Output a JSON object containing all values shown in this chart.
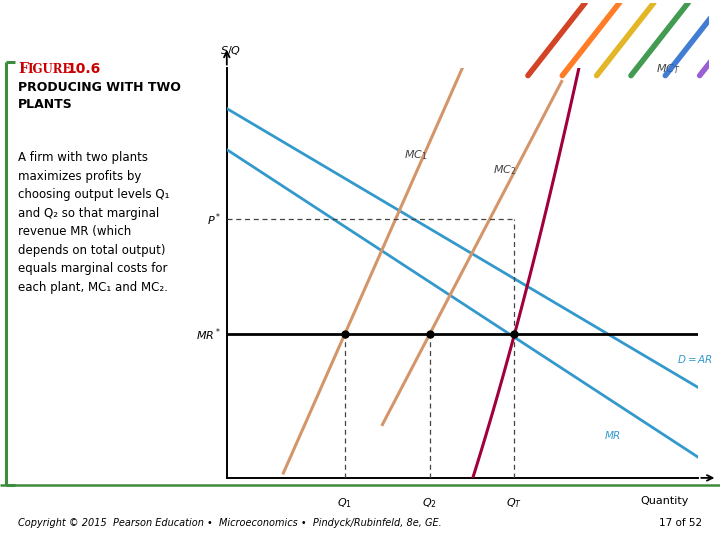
{
  "background_color": "#ffffff",
  "color_blue": "#3399cc",
  "color_salmon": "#d4956a",
  "color_crimson": "#a0003c",
  "color_black": "#000000",
  "color_green": "#3d8c3d",
  "color_red": "#cc0000",
  "color_gray": "#888888",
  "xlim": [
    0,
    10
  ],
  "ylim": [
    0,
    10
  ],
  "Q1": 2.5,
  "Q2": 4.3,
  "QT": 6.1,
  "P_star": 6.3,
  "MR_star": 3.5,
  "footer": "Copyright © 2015  Pearson Education •  Microeconomics •  Pindyck/Rubinfeld, 8e, GE.",
  "page": "17 of 52"
}
